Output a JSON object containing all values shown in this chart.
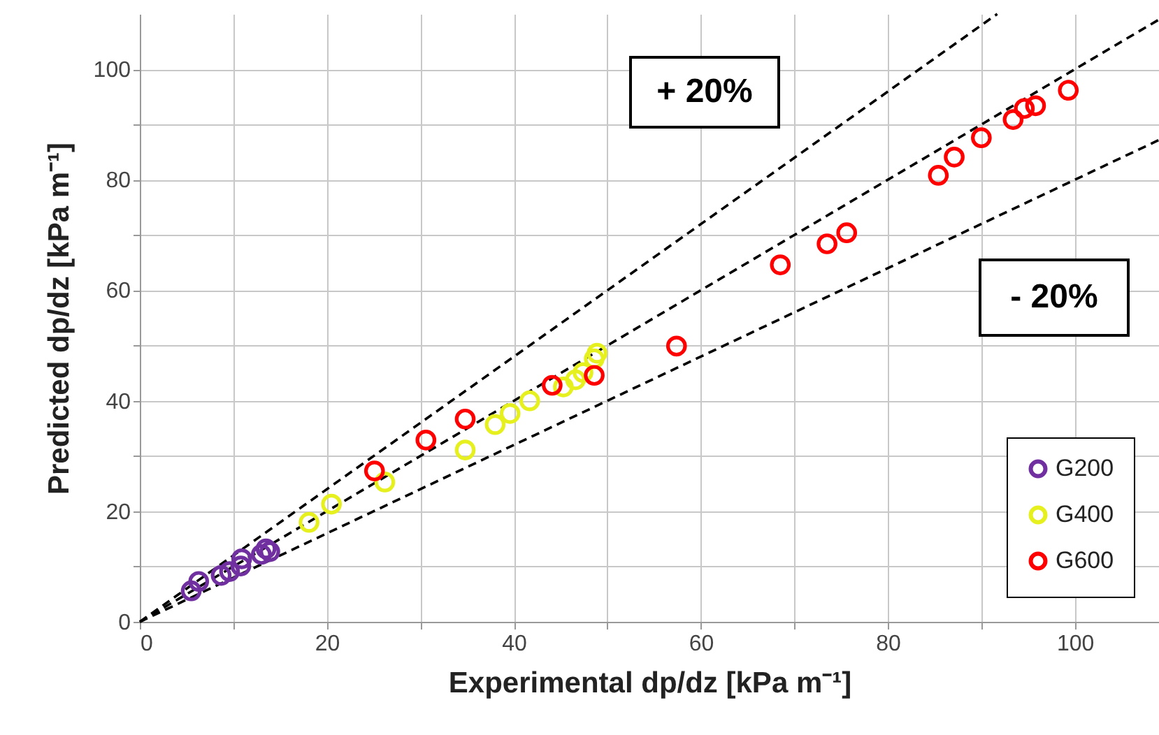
{
  "chart_data": {
    "type": "scatter",
    "xlabel": "Experimental dp/dz [kPa m⁻¹]",
    "ylabel": "Predicted  dp/dz  [kPa m⁻¹]",
    "xlim": [
      0,
      109
    ],
    "ylim": [
      0,
      110
    ],
    "xticks": [
      0,
      {
        "value": 10,
        "label": null
      },
      20,
      {
        "value": 30,
        "label": null
      },
      40,
      {
        "value": 50,
        "label": null
      },
      60,
      {
        "value": 70,
        "label": null
      },
      80,
      {
        "value": 90,
        "label": null
      },
      100
    ],
    "yticks": [
      0,
      {
        "value": 10,
        "label": null
      },
      20,
      {
        "value": 30,
        "label": null
      },
      40,
      {
        "value": 50,
        "label": null
      },
      60,
      {
        "value": 70,
        "label": null
      },
      80,
      {
        "value": 90,
        "label": null
      },
      100
    ],
    "grid": true,
    "legend": "bottom right",
    "marker": "circle",
    "annotations": [
      "+ 20%",
      "- 20%"
    ],
    "series": [
      {
        "type": "line",
        "color": "#000000",
        "line_style": "dashed",
        "marker": "none",
        "x": [
          0,
          109
        ],
        "values": [
          0,
          109
        ]
      },
      {
        "type": "line",
        "color": "#000000",
        "line_style": "dashed",
        "marker": "none",
        "x": [
          0,
          91.7
        ],
        "values": [
          0,
          110
        ]
      },
      {
        "type": "line",
        "color": "#000000",
        "line_style": "dashed",
        "marker": "none",
        "x": [
          0,
          109
        ],
        "values": [
          0,
          87.2
        ]
      },
      {
        "name": "G200",
        "color": "#7030a0",
        "x": [
          5.5,
          6.3,
          8.7,
          9.6,
          10.8,
          10.9,
          13,
          13.5,
          13.9
        ],
        "values": [
          5.6,
          7.3,
          8.4,
          9.1,
          10.1,
          11.4,
          12.2,
          13.2,
          12.7
        ]
      },
      {
        "name": "G400",
        "color": "#e6f01e",
        "x": [
          18.1,
          20.5,
          26.2,
          34.8,
          38,
          39.6,
          41.7,
          45.3,
          46.6,
          47.4,
          48.6,
          48.9
        ],
        "values": [
          18,
          21.3,
          25.3,
          31.1,
          35.7,
          37.7,
          40,
          42.5,
          43.8,
          45.1,
          47.6,
          48.6
        ]
      },
      {
        "name": "G600",
        "color": "#ff0000",
        "x": [
          25.1,
          30.6,
          34.8,
          44.1,
          48.6,
          57.4,
          68.5,
          73.5,
          75.6,
          85.4,
          87.1,
          90,
          93.4,
          94.6,
          95.8,
          99.3
        ],
        "values": [
          27.3,
          32.9,
          36.7,
          42.8,
          44.6,
          49.9,
          64.6,
          68.4,
          70.4,
          80.8,
          84.1,
          87.6,
          90.9,
          92.9,
          93.4,
          96.2
        ]
      }
    ]
  }
}
